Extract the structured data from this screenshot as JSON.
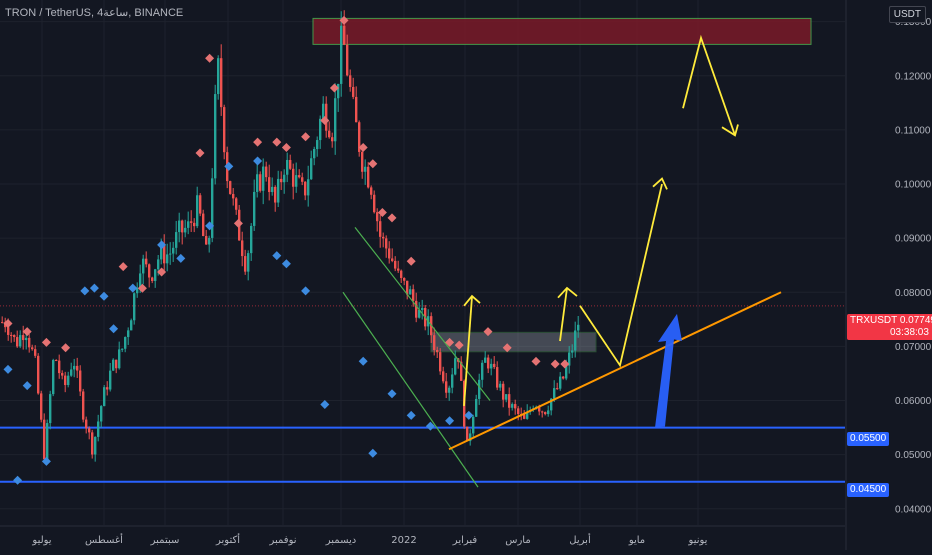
{
  "header": {
    "title": "TRON / TetherUS, 4ساعة, BINANCE",
    "currency": "USDT"
  },
  "price_labels": {
    "symbol": "TRXUSDT",
    "last_price": "0.07749",
    "countdown": "03:38:03",
    "support_1": "0.05500",
    "support_2": "0.04500"
  },
  "colors": {
    "background": "#131722",
    "up": "#26a69a",
    "down": "#ef5350",
    "support": "#2962ff",
    "resistance_zone": "#8b1e2a",
    "projection": "#ffeb3b",
    "trendline": "#ff9800",
    "channel": "#4caf50",
    "big_arrow": "#2962ff"
  },
  "chart_data": {
    "type": "candlestick",
    "symbol": "TRXUSDT",
    "exchange": "BINANCE",
    "timeframe": "4ساعة",
    "ylim": [
      0.037,
      0.134
    ],
    "y_ticks": [
      "0.04000",
      "0.05000",
      "0.06000",
      "0.07000",
      "0.08000",
      "0.09000",
      "0.10000",
      "0.11000",
      "0.12000",
      "0.13000"
    ],
    "x_ticks": [
      "يوليو",
      "أغسطس",
      "سبتمبر",
      "أكتوبر",
      "نوفمبر",
      "ديسمبر",
      "2022",
      "فبراير",
      "مارس",
      "أبريل",
      "مايو",
      "يونيو"
    ],
    "price_path": [
      [
        0,
        0.0745
      ],
      [
        1,
        0.0705
      ],
      [
        2,
        0.0735
      ],
      [
        3,
        0.067
      ],
      [
        4,
        0.0495
      ],
      [
        5,
        0.069
      ],
      [
        6,
        0.062
      ],
      [
        7,
        0.068
      ],
      [
        8,
        0.058
      ],
      [
        9,
        0.051
      ],
      [
        10,
        0.06
      ],
      [
        11,
        0.066
      ],
      [
        12,
        0.069
      ],
      [
        13,
        0.076
      ],
      [
        14,
        0.086
      ],
      [
        15,
        0.083
      ],
      [
        16,
        0.087
      ],
      [
        17,
        0.087
      ],
      [
        18,
        0.091
      ],
      [
        19,
        0.092
      ],
      [
        20,
        0.096
      ],
      [
        21,
        0.085
      ],
      [
        22,
        0.123
      ],
      [
        23,
        0.102
      ],
      [
        24,
        0.093
      ],
      [
        25,
        0.085
      ],
      [
        26,
        0.099
      ],
      [
        27,
        0.103
      ],
      [
        28,
        0.096
      ],
      [
        29,
        0.104
      ],
      [
        30,
        0.101
      ],
      [
        31,
        0.098
      ],
      [
        32,
        0.106
      ],
      [
        33,
        0.114
      ],
      [
        34,
        0.11
      ],
      [
        35,
        0.128
      ],
      [
        36,
        0.115
      ],
      [
        37,
        0.105
      ],
      [
        38,
        0.1
      ],
      [
        39,
        0.09
      ],
      [
        40,
        0.087
      ],
      [
        41,
        0.082
      ],
      [
        42,
        0.08
      ],
      [
        43,
        0.076
      ],
      [
        44,
        0.074
      ],
      [
        45,
        0.068
      ],
      [
        46,
        0.062
      ],
      [
        47,
        0.07
      ],
      [
        48,
        0.051
      ],
      [
        49,
        0.062
      ],
      [
        50,
        0.068
      ],
      [
        51,
        0.064
      ],
      [
        52,
        0.06
      ],
      [
        53,
        0.058
      ],
      [
        54,
        0.056
      ],
      [
        55,
        0.06
      ],
      [
        56,
        0.058
      ],
      [
        57,
        0.061
      ],
      [
        58,
        0.064
      ],
      [
        59,
        0.07
      ],
      [
        60,
        0.0775
      ]
    ],
    "pivot_highs": [
      [
        0,
        0.0735
      ],
      [
        2,
        0.072
      ],
      [
        4,
        0.07
      ],
      [
        6,
        0.069
      ],
      [
        12,
        0.084
      ],
      [
        14,
        0.08
      ],
      [
        16,
        0.083
      ],
      [
        20,
        0.105
      ],
      [
        21,
        0.1225
      ],
      [
        24,
        0.092
      ],
      [
        26,
        0.107
      ],
      [
        28,
        0.107
      ],
      [
        29,
        0.106
      ],
      [
        31,
        0.108
      ],
      [
        33,
        0.111
      ],
      [
        34,
        0.117
      ],
      [
        35,
        0.1295
      ],
      [
        37,
        0.106
      ],
      [
        38,
        0.103
      ],
      [
        39,
        0.094
      ],
      [
        40,
        0.093
      ],
      [
        42,
        0.085
      ],
      [
        46,
        0.07
      ],
      [
        47,
        0.0695
      ],
      [
        50,
        0.072
      ],
      [
        52,
        0.069
      ],
      [
        55,
        0.0665
      ],
      [
        57,
        0.066
      ],
      [
        58,
        0.066
      ]
    ],
    "pivot_lows": [
      [
        0,
        0.0665
      ],
      [
        1,
        0.046
      ],
      [
        2,
        0.0635
      ],
      [
        4,
        0.0495
      ],
      [
        8,
        0.081
      ],
      [
        9,
        0.0815
      ],
      [
        10,
        0.08
      ],
      [
        11,
        0.074
      ],
      [
        13,
        0.0815
      ],
      [
        16,
        0.0895
      ],
      [
        18,
        0.087
      ],
      [
        21,
        0.093
      ],
      [
        23,
        0.104
      ],
      [
        26,
        0.105
      ],
      [
        28,
        0.0875
      ],
      [
        29,
        0.086
      ],
      [
        31,
        0.081
      ],
      [
        33,
        0.06
      ],
      [
        37,
        0.068
      ],
      [
        38,
        0.051
      ],
      [
        40,
        0.062
      ],
      [
        42,
        0.058
      ],
      [
        44,
        0.056
      ],
      [
        46,
        0.057
      ],
      [
        48,
        0.058
      ]
    ],
    "levels": [
      {
        "label": "0.05500",
        "price": 0.055
      },
      {
        "label": "0.04500",
        "price": 0.045
      }
    ],
    "zones": [
      {
        "name": "resistance",
        "from": 0.1258,
        "to": 0.1306
      },
      {
        "name": "demand",
        "from": 0.069,
        "to": 0.0726
      }
    ]
  }
}
